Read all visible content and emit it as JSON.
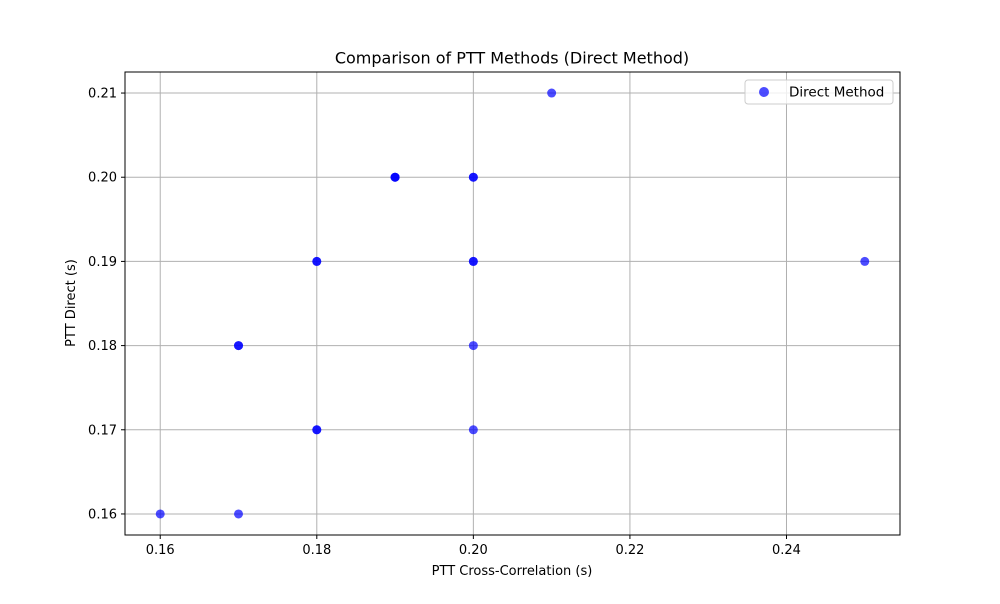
{
  "chart_data": {
    "type": "scatter",
    "title": "Comparison of PTT Methods (Direct Method)",
    "xlabel": "PTT Cross-Correlation (s)",
    "ylabel": "PTT Direct (s)",
    "xlim": [
      0.1555,
      0.2545
    ],
    "ylim": [
      0.1575,
      0.2125
    ],
    "xticks": [
      0.16,
      0.18,
      0.2,
      0.22,
      0.24
    ],
    "xtick_labels": [
      "0.16",
      "0.18",
      "0.20",
      "0.22",
      "0.24"
    ],
    "yticks": [
      0.16,
      0.17,
      0.18,
      0.19,
      0.2,
      0.21
    ],
    "ytick_labels": [
      "0.16",
      "0.17",
      "0.18",
      "0.19",
      "0.20",
      "0.21"
    ],
    "grid": true,
    "legend_position": "upper right",
    "series": [
      {
        "name": "Direct Method",
        "color": "#0000ff",
        "points": [
          {
            "x": 0.16,
            "y": 0.16
          },
          {
            "x": 0.17,
            "y": 0.16
          },
          {
            "x": 0.17,
            "y": 0.18
          },
          {
            "x": 0.17,
            "y": 0.18
          },
          {
            "x": 0.18,
            "y": 0.17
          },
          {
            "x": 0.18,
            "y": 0.17
          },
          {
            "x": 0.18,
            "y": 0.19
          },
          {
            "x": 0.18,
            "y": 0.19
          },
          {
            "x": 0.19,
            "y": 0.2
          },
          {
            "x": 0.19,
            "y": 0.2
          },
          {
            "x": 0.19,
            "y": 0.2
          },
          {
            "x": 0.2,
            "y": 0.17
          },
          {
            "x": 0.2,
            "y": 0.18
          },
          {
            "x": 0.2,
            "y": 0.19
          },
          {
            "x": 0.2,
            "y": 0.19
          },
          {
            "x": 0.2,
            "y": 0.2
          },
          {
            "x": 0.2,
            "y": 0.2
          },
          {
            "x": 0.21,
            "y": 0.21
          },
          {
            "x": 0.25,
            "y": 0.19
          }
        ]
      }
    ]
  }
}
